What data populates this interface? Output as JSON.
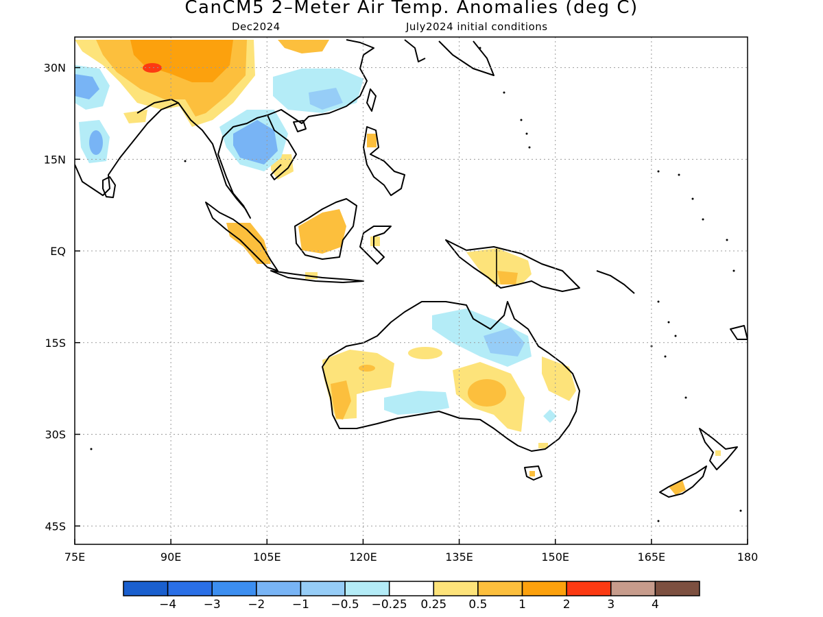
{
  "header": {
    "title": "CanCM5 2–Meter Air Temp. Anomalies (deg C)",
    "left_subtitle": "Dec2024",
    "right_subtitle": "July2024 initial conditions"
  },
  "map": {
    "lon_range": [
      75,
      180
    ],
    "lat_range": [
      -48,
      35
    ],
    "lon_ticks": [
      {
        "value": 75,
        "label": "75E"
      },
      {
        "value": 90,
        "label": "90E"
      },
      {
        "value": 105,
        "label": "105E"
      },
      {
        "value": 120,
        "label": "120E"
      },
      {
        "value": 135,
        "label": "135E"
      },
      {
        "value": 150,
        "label": "150E"
      },
      {
        "value": 165,
        "label": "165E"
      },
      {
        "value": 180,
        "label": "180"
      }
    ],
    "lat_ticks": [
      {
        "value": 30,
        "label": "30N"
      },
      {
        "value": 15,
        "label": "15N"
      },
      {
        "value": 0,
        "label": "EQ"
      },
      {
        "value": -15,
        "label": "15S"
      },
      {
        "value": -30,
        "label": "30S"
      },
      {
        "value": -45,
        "label": "45S"
      }
    ],
    "grid": "dotted"
  },
  "colorbar": {
    "colors": [
      "#1a5fce",
      "#2a6fe6",
      "#3c8ef0",
      "#78b4f5",
      "#96cdf7",
      "#b4ecf7",
      "#ffffff",
      "#fde37a",
      "#fcbf3d",
      "#fca10d",
      "#fc3a12",
      "#c79c8c",
      "#7d5040"
    ],
    "labels": [
      "−4",
      "−3",
      "−2",
      "−1",
      "−0.5",
      "−0.25",
      "0.25",
      "0.5",
      "1",
      "2",
      "3",
      "4"
    ]
  }
}
